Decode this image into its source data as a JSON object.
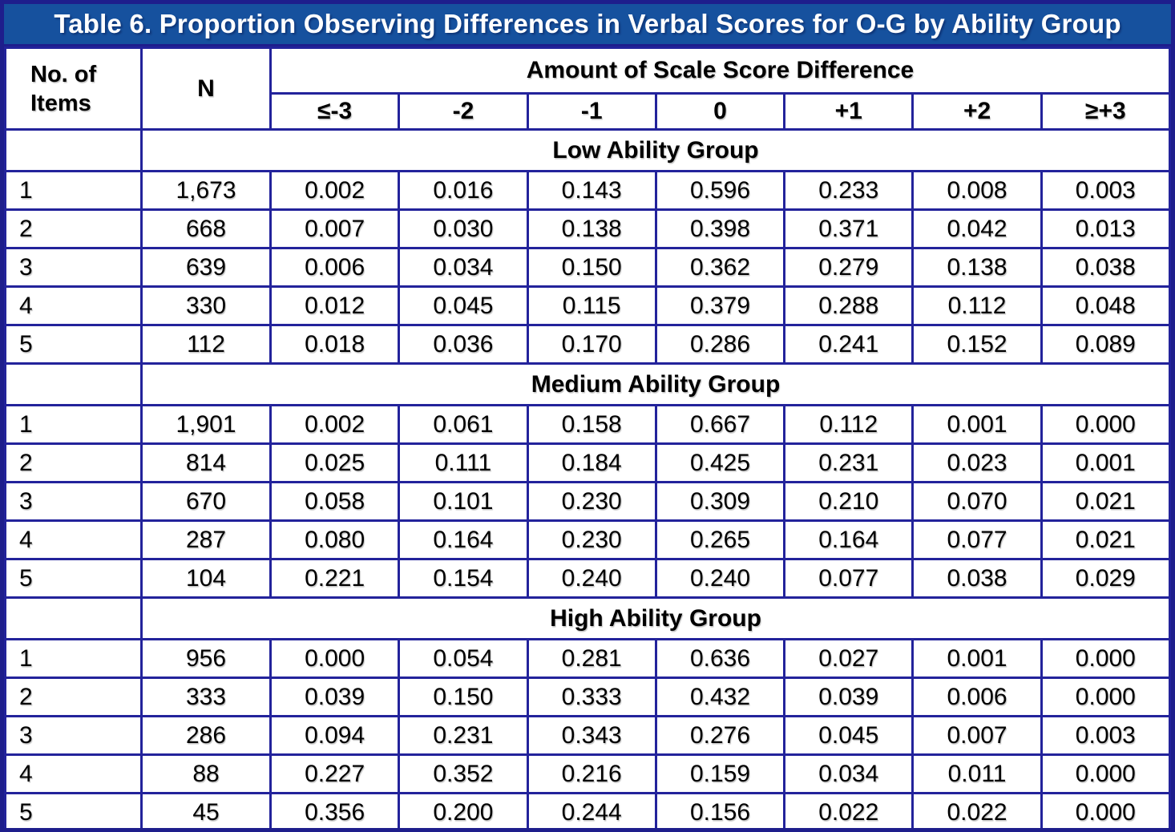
{
  "title": "Table 6. Proportion Observing Differences in Verbal Scores for O-G by Ability Group",
  "header": {
    "items_line1": "No. of",
    "items_line2": "Items",
    "n_label": "N",
    "group_header": "Amount of Scale Score Difference",
    "diff_columns": [
      "≤-3",
      "-2",
      "-1",
      "0",
      "+1",
      "+2",
      "≥+3"
    ]
  },
  "sections": [
    {
      "label": "Low Ability Group",
      "rows": [
        {
          "item": "1",
          "n": "1,673",
          "values": [
            "0.002",
            "0.016",
            "0.143",
            "0.596",
            "0.233",
            "0.008",
            "0.003"
          ]
        },
        {
          "item": "2",
          "n": "668",
          "values": [
            "0.007",
            "0.030",
            "0.138",
            "0.398",
            "0.371",
            "0.042",
            "0.013"
          ]
        },
        {
          "item": "3",
          "n": "639",
          "values": [
            "0.006",
            "0.034",
            "0.150",
            "0.362",
            "0.279",
            "0.138",
            "0.038"
          ]
        },
        {
          "item": "4",
          "n": "330",
          "values": [
            "0.012",
            "0.045",
            "0.115",
            "0.379",
            "0.288",
            "0.112",
            "0.048"
          ]
        },
        {
          "item": "5",
          "n": "112",
          "values": [
            "0.018",
            "0.036",
            "0.170",
            "0.286",
            "0.241",
            "0.152",
            "0.089"
          ]
        }
      ]
    },
    {
      "label": "Medium Ability Group",
      "rows": [
        {
          "item": "1",
          "n": "1,901",
          "values": [
            "0.002",
            "0.061",
            "0.158",
            "0.667",
            "0.112",
            "0.001",
            "0.000"
          ]
        },
        {
          "item": "2",
          "n": "814",
          "values": [
            "0.025",
            "0.111",
            "0.184",
            "0.425",
            "0.231",
            "0.023",
            "0.001"
          ]
        },
        {
          "item": "3",
          "n": "670",
          "values": [
            "0.058",
            "0.101",
            "0.230",
            "0.309",
            "0.210",
            "0.070",
            "0.021"
          ]
        },
        {
          "item": "4",
          "n": "287",
          "values": [
            "0.080",
            "0.164",
            "0.230",
            "0.265",
            "0.164",
            "0.077",
            "0.021"
          ]
        },
        {
          "item": "5",
          "n": "104",
          "values": [
            "0.221",
            "0.154",
            "0.240",
            "0.240",
            "0.077",
            "0.038",
            "0.029"
          ]
        }
      ]
    },
    {
      "label": "High Ability Group",
      "rows": [
        {
          "item": "1",
          "n": "956",
          "values": [
            "0.000",
            "0.054",
            "0.281",
            "0.636",
            "0.027",
            "0.001",
            "0.000"
          ]
        },
        {
          "item": "2",
          "n": "333",
          "values": [
            "0.039",
            "0.150",
            "0.333",
            "0.432",
            "0.039",
            "0.006",
            "0.000"
          ]
        },
        {
          "item": "3",
          "n": "286",
          "values": [
            "0.094",
            "0.231",
            "0.343",
            "0.276",
            "0.045",
            "0.007",
            "0.003"
          ]
        },
        {
          "item": "4",
          "n": "88",
          "values": [
            "0.227",
            "0.352",
            "0.216",
            "0.159",
            "0.034",
            "0.011",
            "0.000"
          ]
        },
        {
          "item": "5",
          "n": "45",
          "values": [
            "0.356",
            "0.200",
            "0.244",
            "0.156",
            "0.022",
            "0.022",
            "0.000"
          ]
        }
      ]
    }
  ],
  "colors": {
    "title_bg": "#16519E",
    "title_text": "#FFFFFF",
    "border": "#23239B",
    "border_dark": "#1E1E8C",
    "cell_bg": "#FFFFFF",
    "text": "#000000"
  }
}
